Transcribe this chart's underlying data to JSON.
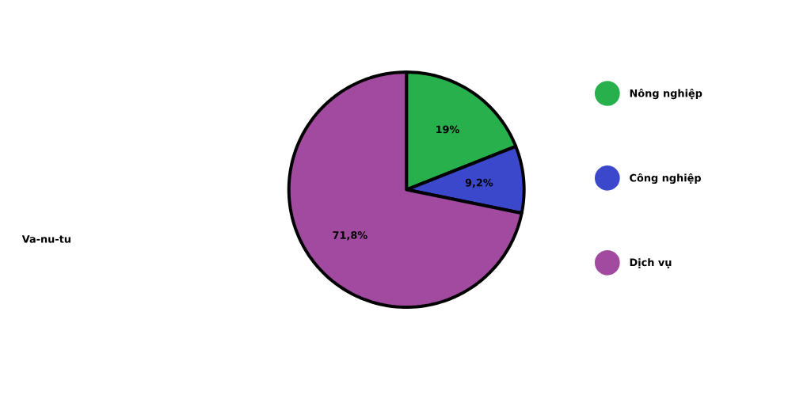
{
  "chart_data": {
    "type": "pie",
    "title": "Va-nu-tu",
    "categories": [
      "Nông nghiệp",
      "Công nghiệp",
      "Dịch vụ"
    ],
    "values": [
      19,
      9.2,
      71.8
    ],
    "value_labels": [
      "19%",
      "9,2%",
      "71,8%"
    ],
    "colors": [
      "#27b04b",
      "#3c48cc",
      "#a24aa0"
    ],
    "legend": "right"
  }
}
